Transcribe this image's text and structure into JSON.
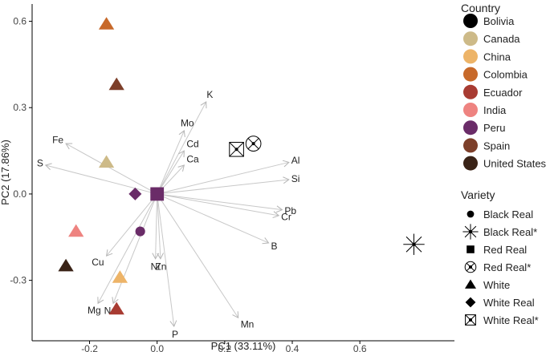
{
  "chart_data": {
    "type": "scatter",
    "subtype": "pca-biplot",
    "xlabel": "PC1 (33.11%)",
    "ylabel": "PC2 (17.86%)",
    "xlim": [
      -0.37,
      0.88
    ],
    "ylim": [
      -0.51,
      0.66
    ],
    "x_ticks": [
      -0.2,
      0.0,
      0.2,
      0.4,
      0.6
    ],
    "x_tick_labels": [
      "-0.2",
      "0.0",
      "0.2",
      "0.4",
      "0.6"
    ],
    "y_ticks": [
      -0.3,
      0.0,
      0.3,
      0.6
    ],
    "y_tick_labels": [
      "-0.3",
      "0.0",
      "0.3",
      "0.6"
    ],
    "grid": false,
    "legend_placement": "right",
    "country_legend": {
      "title": "Country",
      "items": [
        {
          "label": "Bolivia",
          "color": "#000000"
        },
        {
          "label": "Canada",
          "color": "#CDBA88"
        },
        {
          "label": "China",
          "color": "#EDB468"
        },
        {
          "label": "Colombia",
          "color": "#C7692A"
        },
        {
          "label": "Ecuador",
          "color": "#A83B32"
        },
        {
          "label": "India",
          "color": "#EE8380"
        },
        {
          "label": "Peru",
          "color": "#6A2C68"
        },
        {
          "label": "Spain",
          "color": "#7D3F2A"
        },
        {
          "label": "United States",
          "color": "#3A2317"
        }
      ]
    },
    "variety_legend": {
      "title": "Variety",
      "items": [
        {
          "label": "Black Real",
          "shape": "circle"
        },
        {
          "label": "Black Real*",
          "shape": "asterisk"
        },
        {
          "label": "Red Real",
          "shape": "square"
        },
        {
          "label": "Red Real*",
          "shape": "circle-x"
        },
        {
          "label": "White",
          "shape": "triangle"
        },
        {
          "label": "White Real",
          "shape": "diamond"
        },
        {
          "label": "White Real*",
          "shape": "square-x"
        }
      ]
    },
    "points": [
      {
        "x": -0.15,
        "y": 0.59,
        "country": "Colombia",
        "variety": "White"
      },
      {
        "x": -0.12,
        "y": 0.38,
        "country": "Spain",
        "variety": "White"
      },
      {
        "x": -0.15,
        "y": 0.11,
        "country": "Canada",
        "variety": "White"
      },
      {
        "x": -0.24,
        "y": -0.13,
        "country": "India",
        "variety": "White"
      },
      {
        "x": -0.27,
        "y": -0.25,
        "country": "United States",
        "variety": "White"
      },
      {
        "x": -0.11,
        "y": -0.29,
        "country": "China",
        "variety": "White"
      },
      {
        "x": -0.12,
        "y": -0.4,
        "country": "Ecuador",
        "variety": "White"
      },
      {
        "x": -0.065,
        "y": 0.0,
        "country": "Peru",
        "variety": "White Real"
      },
      {
        "x": 0.0,
        "y": 0.0,
        "country": "Peru",
        "variety": "Red Real"
      },
      {
        "x": -0.05,
        "y": -0.13,
        "country": "Peru",
        "variety": "Black Real"
      },
      {
        "x": 0.235,
        "y": 0.155,
        "country": "Bolivia",
        "variety": "White Real*"
      },
      {
        "x": 0.285,
        "y": 0.175,
        "country": "Bolivia",
        "variety": "Red Real*"
      },
      {
        "x": 0.76,
        "y": -0.175,
        "country": "Bolivia",
        "variety": "Black Real*"
      }
    ],
    "loadings": [
      {
        "label": "K",
        "x": 0.145,
        "y": 0.32
      },
      {
        "label": "Mo",
        "x": 0.08,
        "y": 0.22
      },
      {
        "label": "Cd",
        "x": 0.08,
        "y": 0.15
      },
      {
        "label": "Ca",
        "x": 0.08,
        "y": 0.1
      },
      {
        "label": "Fe",
        "x": -0.27,
        "y": 0.175
      },
      {
        "label": "S",
        "x": -0.33,
        "y": 0.1
      },
      {
        "label": "Al",
        "x": 0.39,
        "y": 0.11
      },
      {
        "label": "Si",
        "x": 0.39,
        "y": 0.05
      },
      {
        "label": "Pb",
        "x": 0.37,
        "y": -0.055
      },
      {
        "label": "Cr",
        "x": 0.36,
        "y": -0.075
      },
      {
        "label": "B",
        "x": 0.33,
        "y": -0.17
      },
      {
        "label": "Mn",
        "x": 0.24,
        "y": -0.43
      },
      {
        "label": "P",
        "x": 0.05,
        "y": -0.46
      },
      {
        "label": "Ni",
        "x": -0.005,
        "y": -0.225
      },
      {
        "label": "Zn",
        "x": 0.01,
        "y": -0.225
      },
      {
        "label": "Cu",
        "x": -0.15,
        "y": -0.215
      },
      {
        "label": "Mg",
        "x": -0.175,
        "y": -0.38
      },
      {
        "label": "Na",
        "x": -0.13,
        "y": -0.38
      }
    ]
  }
}
